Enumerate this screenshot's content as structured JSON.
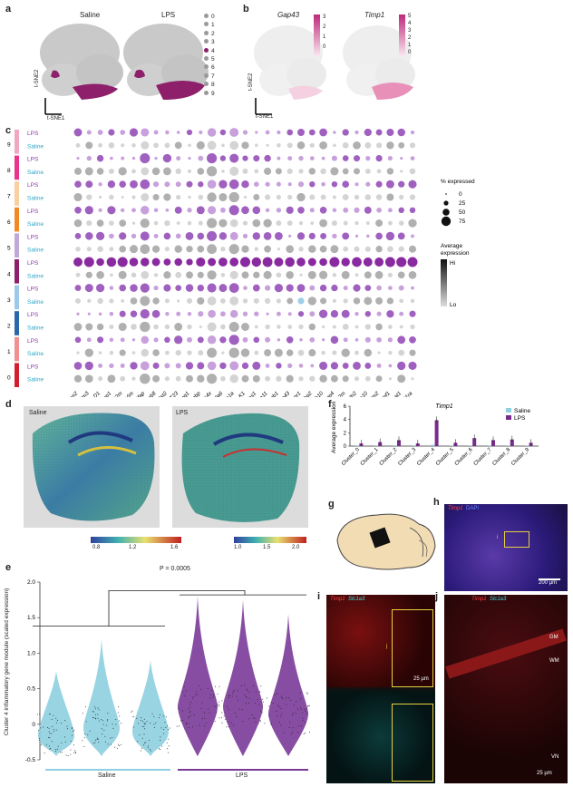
{
  "panel_labels": {
    "a": "a",
    "b": "b",
    "c": "c",
    "d": "d",
    "e": "e",
    "f": "f",
    "g": "g",
    "h": "h",
    "i": "i",
    "j": "j"
  },
  "panel_a": {
    "titles": [
      "Saline",
      "LPS"
    ],
    "axis_y": "t-SNE2",
    "axis_x": "t-SNE1",
    "legend": [
      "0",
      "1",
      "2",
      "3",
      "4",
      "5",
      "6",
      "7",
      "8",
      "9"
    ],
    "highlight_color": "#8e1f6b"
  },
  "panel_b": {
    "titles": [
      "Gap43",
      "Timp1"
    ],
    "axis_y": "t-SNE2",
    "axis_x": "t-SNE1",
    "scale1": [
      "3",
      "2",
      "1",
      "0"
    ],
    "scale2": [
      "5",
      "4",
      "3",
      "2",
      "1",
      "0"
    ]
  },
  "panel_c": {
    "clusters": [
      "9",
      "8",
      "7",
      "6",
      "5",
      "4",
      "3",
      "2",
      "1",
      "0"
    ],
    "conditions": [
      "LPS",
      "Saline"
    ],
    "cluster_colors": [
      "#f0a8c0",
      "#e8348a",
      "#f8d0a0",
      "#f08a24",
      "#c0a8d8",
      "#8e1f6b",
      "#9ec8e8",
      "#2868a8",
      "#f09090",
      "#d02030"
    ],
    "genes": [
      "Lcn2",
      "Ifitm3",
      "H2-D1",
      "Timp1",
      "B2m",
      "Vim",
      "Gfap",
      "Psmb8",
      "Bst2",
      "H2-T23",
      "Serping1",
      "Tapbp",
      "Rps4x",
      "S100a6",
      "Tuba1a",
      "H2-K1",
      "Gas1",
      "S100a11",
      "Hspb1",
      "Gap43",
      "Nupr1",
      "Gbp2",
      "Psmb10",
      "Aqp4",
      "A2m",
      "Tagln2",
      "S100a10",
      "Ifitm2",
      "Serpinf1",
      "Plaat1",
      "C1ra"
    ],
    "legend_pct_title": "% expressed",
    "legend_pct": [
      "0",
      "25",
      "50",
      "75"
    ],
    "legend_avg_title": "Average expression",
    "legend_hi": "Hi",
    "legend_lo": "Lo"
  },
  "panel_d": {
    "titles": [
      "Saline",
      "LPS"
    ],
    "scale1": [
      "0.8",
      "1.2",
      "1.6"
    ],
    "scale2": [
      "1.0",
      "1.5",
      "2.0"
    ]
  },
  "panel_e": {
    "pvalue": "P = 0.0005",
    "ylabel": "Cluster 4 inflammatory gene module (scaled expression)",
    "yticks": [
      "2.0",
      "1.5",
      "1.0",
      "0.5",
      "0",
      "-0.5"
    ],
    "groups": [
      "Saline",
      "LPS"
    ],
    "saline_color": "#8ecfe0",
    "lps_color": "#7a3a98"
  },
  "chart_data": {
    "type": "bar",
    "title": "Timp1",
    "ylabel": "Average expression",
    "ylim": [
      0,
      6
    ],
    "yticks": [
      "0",
      "2",
      "4",
      "6"
    ],
    "categories": [
      "Cluster_0",
      "Cluster_1",
      "Cluster_2",
      "Cluster_3",
      "Cluster_4",
      "Cluster_5",
      "Cluster_6",
      "Cluster_7",
      "Cluster_8",
      "Cluster_9"
    ],
    "series": [
      {
        "name": "Saline",
        "color": "#8ecfe0",
        "values": [
          0.1,
          0.1,
          0.1,
          0.1,
          0.2,
          0.1,
          0.1,
          0.1,
          0.1,
          0.1
        ]
      },
      {
        "name": "LPS",
        "color": "#7a2a8c",
        "values": [
          0.4,
          0.6,
          0.9,
          0.4,
          3.9,
          0.5,
          1.2,
          0.9,
          1.0,
          0.5
        ]
      }
    ]
  },
  "panel_h": {
    "gene": "Timp1",
    "stain": "DAPI",
    "scale": "200 µm",
    "inset": "i"
  },
  "panel_i": {
    "gene": "Timp1",
    "gene2": "Slc1a3",
    "scale": "25 µm",
    "inset": "j"
  },
  "panel_j": {
    "gene": "Timp1",
    "gene2": "Slc1a3",
    "scale": "25 µm",
    "gm": "GM",
    "wm": "WM",
    "vn": "VN"
  }
}
